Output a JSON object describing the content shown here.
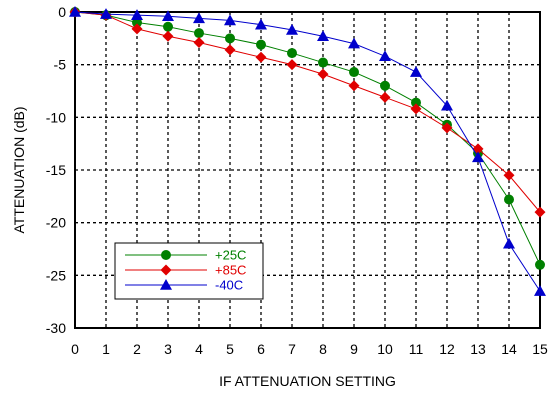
{
  "chart_data": {
    "type": "line",
    "xlabel": "IF ATTENUATION SETTING",
    "ylabel": "ATTENUATION (dB)",
    "xlim": [
      0,
      15
    ],
    "ylim": [
      -30,
      0
    ],
    "x_ticks": [
      "0",
      "1",
      "2",
      "3",
      "4",
      "5",
      "6",
      "7",
      "8",
      "9",
      "10",
      "11",
      "12",
      "13",
      "14",
      "15"
    ],
    "y_ticks": [
      "0",
      "-5",
      "-10",
      "-15",
      "-20",
      "-25",
      "-30"
    ],
    "grid": true,
    "legend_position": "bottom-left",
    "x": [
      0,
      1,
      2,
      3,
      4,
      5,
      6,
      7,
      8,
      9,
      10,
      11,
      12,
      13,
      14,
      15
    ],
    "series": [
      {
        "name": "+25C",
        "color": "#008000",
        "marker": "circle",
        "values": [
          0,
          -0.3,
          -1.0,
          -1.4,
          -2.0,
          -2.5,
          -3.1,
          -3.9,
          -4.8,
          -5.7,
          -7.0,
          -8.6,
          -10.7,
          -13.4,
          -17.8,
          -24.0
        ]
      },
      {
        "name": "+85C",
        "color": "#e00000",
        "marker": "diamond",
        "values": [
          0,
          -0.3,
          -1.6,
          -2.3,
          -2.9,
          -3.6,
          -4.3,
          -5.0,
          -5.9,
          -7.0,
          -8.1,
          -9.2,
          -11.0,
          -13.0,
          -15.5,
          -19.0
        ]
      },
      {
        "name": "-40C",
        "color": "#0000cc",
        "marker": "triangle",
        "values": [
          0,
          -0.2,
          -0.3,
          -0.4,
          -0.6,
          -0.8,
          -1.2,
          -1.7,
          -2.3,
          -3.0,
          -4.2,
          -5.7,
          -8.9,
          -13.8,
          -22.0,
          -26.5
        ]
      }
    ]
  }
}
